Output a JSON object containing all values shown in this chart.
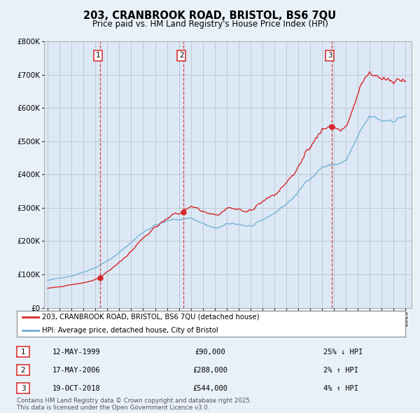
{
  "title": "203, CRANBROOK ROAD, BRISTOL, BS6 7QU",
  "subtitle": "Price paid vs. HM Land Registry's House Price Index (HPI)",
  "bg_color": "#e8f0f8",
  "plot_bg_color": "#dce8f5",
  "legend_line1": "203, CRANBROOK ROAD, BRISTOL, BS6 7QU (detached house)",
  "legend_line2": "HPI: Average price, detached house, City of Bristol",
  "footer": "Contains HM Land Registry data © Crown copyright and database right 2025.\nThis data is licensed under the Open Government Licence v3.0.",
  "transactions": [
    {
      "num": 1,
      "date": "12-MAY-1999",
      "price": 90000,
      "pct": "25%",
      "dir": "↓",
      "year": 1999.37
    },
    {
      "num": 2,
      "date": "17-MAY-2006",
      "price": 288000,
      "pct": "2%",
      "dir": "↑",
      "year": 2006.37
    },
    {
      "num": 3,
      "date": "19-OCT-2018",
      "price": 544000,
      "pct": "4%",
      "dir": "↑",
      "year": 2018.8
    }
  ],
  "hpi_color": "#6baed6",
  "price_color": "#d62728",
  "vline_color": "#d62728",
  "grid_color": "#c0c8d0",
  "ylim": [
    0,
    800000
  ],
  "xlim_start": 1994.7,
  "xlim_end": 2025.5
}
